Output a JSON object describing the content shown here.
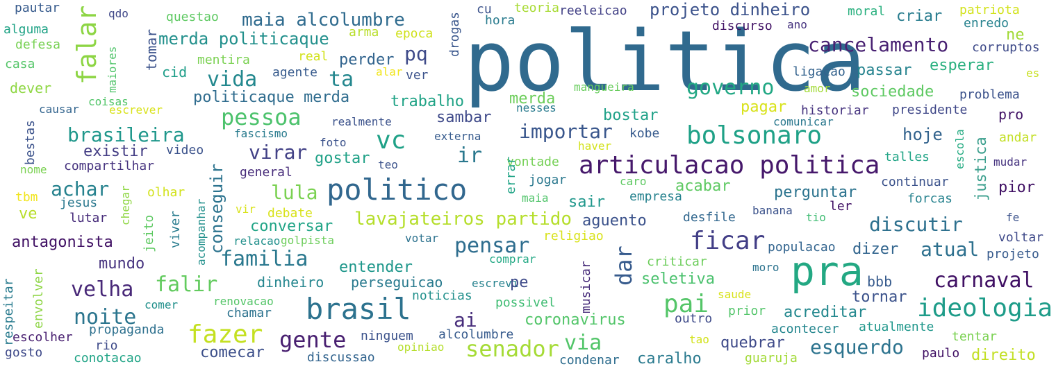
{
  "words": [
    "politica",
    "pra",
    "articulacao politica",
    "politico",
    "brasil",
    "bolsonaro",
    "ficar",
    "ideologia",
    "fazer",
    "gente",
    "falar",
    "pai",
    "carnaval",
    "vc",
    "senador",
    "dar",
    "ta",
    "pessoa",
    "familia",
    "falir",
    "brasileira",
    "governo",
    "pensar",
    "importar",
    "ir",
    "virar",
    "esquerdo",
    "maia alcolumbre",
    "lula",
    "projeto dinheiro",
    "cancelamento",
    "lavajateiros partido",
    "discutir",
    "achar",
    "noite",
    "velha",
    "via",
    "vida",
    "merda politicaque",
    "acreditar",
    "atual",
    "conseguir",
    "pq",
    "ai",
    "coronavirus",
    "politicaque merda",
    "hoje",
    "trabalho",
    "antagonista",
    "conversar",
    "perguntar",
    "seletiva",
    "sociedade",
    "bostar",
    "esperar",
    "aguento",
    "existir",
    "entender",
    "perseguicao",
    "dinheiro",
    "quebrar",
    "direito",
    "tornar",
    "comecar",
    "caralho",
    "mundo",
    "merda",
    "sambar",
    "gostar",
    "pagar",
    "acabar",
    "dizer",
    "pior",
    "sair",
    "bbb",
    "criar",
    "perder",
    "ne",
    "passar",
    "justica",
    "falar_",
    "pautar",
    "alguma",
    "defesa",
    "casa",
    "dever",
    "qdo",
    "questao",
    "maiores",
    "tomar",
    "cid",
    "mentira",
    "arma",
    "epoca",
    "real",
    "alar",
    "agente",
    "ver",
    "drogas",
    "cu",
    "teoria",
    "hora",
    "reeleicao",
    "discurso",
    "ano",
    "moral",
    "enredo",
    "patriota",
    "corruptos",
    "es",
    "ligacao",
    "amor",
    "mangueira",
    "problema",
    "presidente",
    "pro",
    "historiar",
    "comunicar",
    "escola",
    "andar",
    "nesses",
    "causar",
    "escrever",
    "coisas",
    "bestas",
    "fascismo",
    "realmente",
    "externa",
    "foto",
    "video",
    "kobe",
    "haver",
    "compartilhar",
    "nome",
    "general",
    "teo",
    "vontade",
    "talles",
    "mudar",
    "jogar",
    "caro",
    "continuar",
    "tbm",
    "olhar",
    "chegar",
    "jesus",
    "maia",
    "empresa",
    "forcas",
    "errar",
    "ve",
    "vir",
    "debate",
    "lutar",
    "viver",
    "acompanhar",
    "jeito",
    "ler",
    "tio",
    "banana",
    "desfile",
    "fe",
    "relacao",
    "golpista",
    "votar",
    "religiao",
    "voltar",
    "populacao",
    "projeto",
    "comprar",
    "criticar",
    "moro",
    "musicar",
    "escrevi",
    "pe",
    "respeitar",
    "envolver",
    "renovacao",
    "comer",
    "noticias",
    "possivel",
    "saude",
    "prior",
    "outro",
    "chamar",
    "escolher",
    "propaganda",
    "rio",
    "acontecer",
    "atualmente",
    "tentar",
    "alcolumbre",
    "ninguem",
    "tao",
    "gosto",
    "conotacao",
    "discussao",
    "opiniao",
    "condenar",
    "guaruja",
    "paulo"
  ]
}
